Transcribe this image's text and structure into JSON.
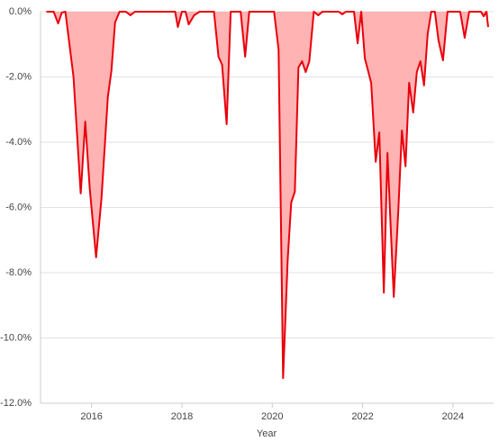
{
  "chart_data": {
    "type": "area",
    "x_label": "Year",
    "color": "#e8000b",
    "fill": "#ffb3b3",
    "x": [
      2015.0,
      2015.16,
      2015.26,
      2015.34,
      2015.42,
      2015.6,
      2015.76,
      2015.86,
      2015.96,
      2016.1,
      2016.22,
      2016.36,
      2016.44,
      2016.52,
      2016.62,
      2016.76,
      2016.86,
      2016.96,
      2017.85,
      2017.91,
      2018.0,
      2018.08,
      2018.15,
      2018.27,
      2018.39,
      2018.71,
      2018.81,
      2018.89,
      2018.99,
      2019.08,
      2019.3,
      2019.4,
      2019.49,
      2020.04,
      2020.14,
      2020.24,
      2020.34,
      2020.42,
      2020.5,
      2020.58,
      2020.66,
      2020.74,
      2020.82,
      2020.92,
      2021.02,
      2021.11,
      2021.47,
      2021.55,
      2021.63,
      2021.81,
      2021.89,
      2021.97,
      2022.05,
      2022.19,
      2022.29,
      2022.37,
      2022.47,
      2022.55,
      2022.69,
      2022.79,
      2022.87,
      2022.95,
      2023.03,
      2023.12,
      2023.2,
      2023.28,
      2023.36,
      2023.44,
      2023.52,
      2023.6,
      2023.68,
      2023.78,
      2023.88,
      2024.16,
      2024.26,
      2024.36,
      2024.62,
      2024.68,
      2024.74,
      2024.78
    ],
    "values": [
      0,
      0,
      -0.36,
      -0.03,
      0,
      -2.0,
      -5.57,
      -3.37,
      -5.43,
      -7.53,
      -5.71,
      -2.62,
      -1.8,
      -0.33,
      0,
      0,
      -0.11,
      0,
      0,
      -0.47,
      0,
      0,
      -0.39,
      -0.11,
      0,
      0,
      -1.38,
      -1.63,
      -3.45,
      0,
      0,
      -1.38,
      0,
      0,
      -1.16,
      -11.23,
      -7.64,
      -5.85,
      -5.52,
      -1.71,
      -1.52,
      -1.85,
      -1.52,
      0,
      -0.11,
      0,
      0,
      -0.08,
      0,
      0,
      -0.97,
      0,
      -1.43,
      -2.18,
      -4.6,
      -3.7,
      -8.61,
      -4.33,
      -8.74,
      -6.12,
      -3.64,
      -4.74,
      -2.18,
      -3.09,
      -1.85,
      -1.52,
      -2.26,
      -0.69,
      0,
      0,
      -0.88,
      -1.49,
      0,
      0,
      -0.8,
      0,
      0,
      -0.14,
      0,
      -0.47
    ],
    "xlim": [
      2014.87,
      2024.9
    ],
    "xticks": [
      2016,
      2018,
      2020,
      2022,
      2024
    ],
    "ylim": [
      -12,
      0
    ],
    "yticks": [
      {
        "value": 0,
        "label": "0.0%"
      },
      {
        "value": -2,
        "label": "-2.0%"
      },
      {
        "value": -4,
        "label": "-4.0%"
      },
      {
        "value": -6,
        "label": "-6.0%"
      },
      {
        "value": -8,
        "label": "-8.0%"
      },
      {
        "value": -10,
        "label": "-10.0%"
      },
      {
        "value": -12,
        "label": "-12.0%"
      }
    ],
    "grid": true
  }
}
